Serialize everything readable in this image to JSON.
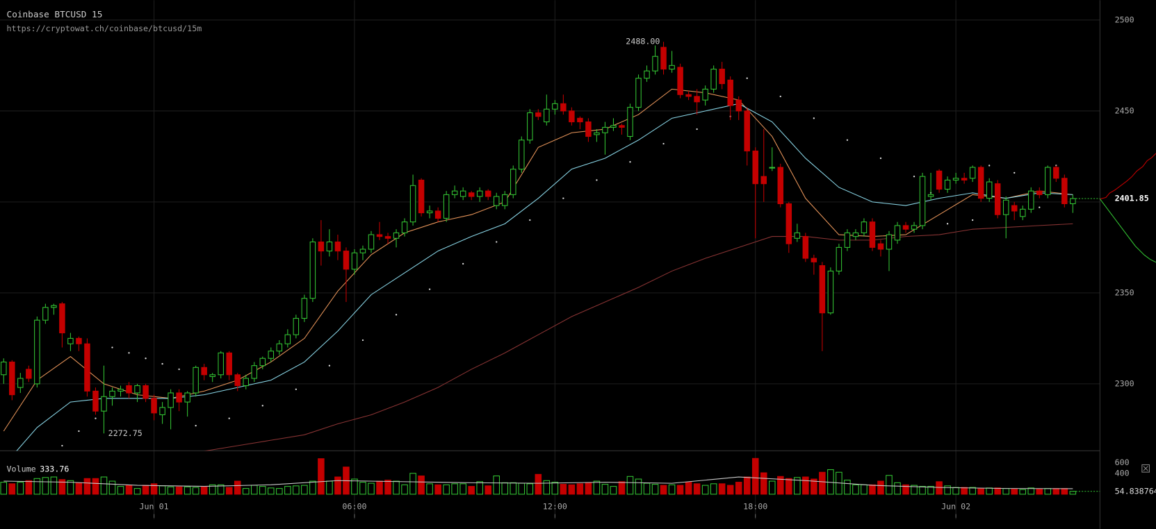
{
  "chart_data": {
    "type": "candlestick",
    "title": "Coinbase BTCUSD 15",
    "subtitle": "https://cryptowat.ch/coinbase/btcusd/15m",
    "up_color": "#33c433",
    "down_color": "#c40000",
    "grid": true,
    "xlim": [
      -0.44,
      131.25
    ],
    "xticks": [
      {
        "value": 18,
        "label": "Jun 01"
      },
      {
        "value": 42,
        "label": "06:00"
      },
      {
        "value": 66,
        "label": "12:00"
      },
      {
        "value": 90,
        "label": "18:00"
      },
      {
        "value": 114,
        "label": "Jun 02"
      }
    ],
    "ylim": [
      2263.2,
      2510.9
    ],
    "yticks": [
      2300,
      2350,
      2400,
      2450,
      2500
    ],
    "ohlc": [
      [
        2305,
        2314,
        2300,
        2312
      ],
      [
        2312,
        2313,
        2291,
        2294
      ],
      [
        2298,
        2306,
        2295,
        2303
      ],
      [
        2308,
        2310,
        2301,
        2303
      ],
      [
        2300,
        2337,
        2298,
        2335
      ],
      [
        2335,
        2344,
        2333,
        2342
      ],
      [
        2342,
        2344,
        2338,
        2343
      ],
      [
        2344,
        2345,
        2320,
        2328
      ],
      [
        2322,
        2328,
        2318,
        2325
      ],
      [
        2325,
        2326,
        2318,
        2322
      ],
      [
        2322,
        2325,
        2293,
        2296
      ],
      [
        2296,
        2298,
        2283,
        2285
      ],
      [
        2285,
        2310,
        2272.75,
        2293
      ],
      [
        2293,
        2298,
        2288,
        2296
      ],
      [
        2296,
        2299,
        2293,
        2297
      ],
      [
        2299,
        2301,
        2292,
        2295
      ],
      [
        2295,
        2300,
        2290,
        2299
      ],
      [
        2299,
        2300,
        2290,
        2292
      ],
      [
        2292,
        2294,
        2280,
        2284
      ],
      [
        2283,
        2290,
        2278,
        2287
      ],
      [
        2287,
        2297,
        2275,
        2295
      ],
      [
        2295,
        2297,
        2285,
        2290
      ],
      [
        2290,
        2296,
        2282,
        2295
      ],
      [
        2295,
        2310,
        2293,
        2309
      ],
      [
        2309,
        2311,
        2302,
        2305
      ],
      [
        2304,
        2306,
        2301,
        2305
      ],
      [
        2305,
        2318,
        2303,
        2317
      ],
      [
        2317,
        2318,
        2302,
        2305
      ],
      [
        2305,
        2306,
        2296,
        2299
      ],
      [
        2299,
        2305,
        2297,
        2303
      ],
      [
        2303,
        2312,
        2301,
        2310
      ],
      [
        2310,
        2315,
        2308,
        2314
      ],
      [
        2314,
        2320,
        2312,
        2318
      ],
      [
        2318,
        2324,
        2316,
        2322
      ],
      [
        2322,
        2330,
        2320,
        2327
      ],
      [
        2327,
        2338,
        2325,
        2336
      ],
      [
        2336,
        2349,
        2334,
        2347
      ],
      [
        2347,
        2380,
        2345,
        2378
      ],
      [
        2378,
        2390,
        2365,
        2373
      ],
      [
        2373,
        2385,
        2370,
        2378
      ],
      [
        2378,
        2382,
        2368,
        2373
      ],
      [
        2373,
        2375,
        2345,
        2363
      ],
      [
        2363,
        2374,
        2360,
        2372
      ],
      [
        2372,
        2376,
        2368,
        2374
      ],
      [
        2374,
        2384,
        2372,
        2382
      ],
      [
        2382,
        2389,
        2379,
        2381
      ],
      [
        2381,
        2383,
        2377,
        2380
      ],
      [
        2380,
        2385,
        2375,
        2383
      ],
      [
        2383,
        2391,
        2381,
        2389
      ],
      [
        2389,
        2415,
        2387,
        2409
      ],
      [
        2412,
        2413,
        2392,
        2394
      ],
      [
        2394,
        2398,
        2391,
        2395
      ],
      [
        2395,
        2397,
        2389,
        2391
      ],
      [
        2391,
        2406,
        2389,
        2404
      ],
      [
        2404,
        2409,
        2402,
        2406
      ],
      [
        2403,
        2408,
        2401,
        2406
      ],
      [
        2405,
        2406,
        2401,
        2403
      ],
      [
        2403,
        2408,
        2400,
        2406
      ],
      [
        2406,
        2407,
        2401,
        2403
      ],
      [
        2398,
        2405,
        2396,
        2403
      ],
      [
        2398,
        2406,
        2396,
        2404
      ],
      [
        2404,
        2420,
        2402,
        2418
      ],
      [
        2418,
        2436,
        2416,
        2434
      ],
      [
        2434,
        2451,
        2432,
        2449
      ],
      [
        2449,
        2451,
        2445,
        2447
      ],
      [
        2444,
        2459,
        2442,
        2451
      ],
      [
        2451,
        2456,
        2448,
        2454
      ],
      [
        2454,
        2459,
        2448,
        2450
      ],
      [
        2450,
        2452,
        2442,
        2444
      ],
      [
        2446,
        2447,
        2440,
        2444
      ],
      [
        2444,
        2446,
        2433,
        2436
      ],
      [
        2437,
        2440,
        2433,
        2438
      ],
      [
        2438,
        2444,
        2426,
        2441
      ],
      [
        2441,
        2446,
        2439,
        2442
      ],
      [
        2442,
        2443,
        2437,
        2441
      ],
      [
        2436,
        2454,
        2434,
        2452
      ],
      [
        2452,
        2470,
        2450,
        2468
      ],
      [
        2468,
        2475,
        2466,
        2472
      ],
      [
        2472,
        2486,
        2470,
        2480
      ],
      [
        2485,
        2488,
        2470,
        2473
      ],
      [
        2473,
        2483,
        2471,
        2475
      ],
      [
        2474,
        2476,
        2457,
        2459
      ],
      [
        2459,
        2461,
        2456,
        2458
      ],
      [
        2458,
        2462,
        2448,
        2455
      ],
      [
        2456,
        2464,
        2453,
        2462
      ],
      [
        2462,
        2475,
        2460,
        2473
      ],
      [
        2473,
        2477,
        2462,
        2465
      ],
      [
        2467,
        2469,
        2445,
        2453
      ],
      [
        2456,
        2458,
        2445,
        2450
      ],
      [
        2450,
        2452,
        2420,
        2428
      ],
      [
        2428,
        2430,
        2380,
        2410
      ],
      [
        2414,
        2440,
        2400,
        2410
      ],
      [
        2419,
        2430,
        2417,
        2419
      ],
      [
        2419,
        2421,
        2397,
        2399
      ],
      [
        2399,
        2400,
        2372,
        2377
      ],
      [
        2380,
        2388,
        2378,
        2383
      ],
      [
        2381,
        2383,
        2367,
        2369
      ],
      [
        2369,
        2371,
        2360,
        2367
      ],
      [
        2365,
        2367,
        2318,
        2339
      ],
      [
        2339,
        2364,
        2338,
        2362
      ],
      [
        2362,
        2377,
        2360,
        2375
      ],
      [
        2375,
        2385,
        2373,
        2383
      ],
      [
        2381,
        2385,
        2379,
        2383
      ],
      [
        2383,
        2391,
        2381,
        2389
      ],
      [
        2389,
        2391,
        2373,
        2375
      ],
      [
        2377,
        2379,
        2370,
        2374
      ],
      [
        2374,
        2384,
        2362,
        2382
      ],
      [
        2379,
        2389,
        2377,
        2387
      ],
      [
        2387,
        2389,
        2383,
        2385
      ],
      [
        2385,
        2389,
        2383,
        2387
      ],
      [
        2387,
        2416,
        2385,
        2414
      ],
      [
        2403,
        2416,
        2401,
        2404
      ],
      [
        2417,
        2418,
        2405,
        2407
      ],
      [
        2407,
        2414,
        2405,
        2412
      ],
      [
        2412,
        2416,
        2410,
        2413
      ],
      [
        2413,
        2416,
        2410,
        2412
      ],
      [
        2413,
        2420,
        2411,
        2419
      ],
      [
        2419,
        2420,
        2400,
        2402
      ],
      [
        2402,
        2413,
        2400,
        2411
      ],
      [
        2410,
        2412,
        2391,
        2393
      ],
      [
        2393,
        2403,
        2380,
        2401
      ],
      [
        2398,
        2400,
        2390,
        2395
      ],
      [
        2392,
        2398,
        2390,
        2396
      ],
      [
        2396,
        2408,
        2394,
        2406
      ],
      [
        2406,
        2408,
        2402,
        2404
      ],
      [
        2404,
        2420,
        2402,
        2419
      ],
      [
        2419,
        2420,
        2411,
        2413
      ],
      [
        2413,
        2415,
        2397,
        2399
      ],
      [
        2399,
        2404,
        2394,
        2401.85
      ]
    ],
    "moving_averages": [
      {
        "color": "#e8955a",
        "x": [
          0,
          4,
          8,
          12,
          16,
          20,
          24,
          28,
          32,
          36,
          40,
          44,
          48,
          52,
          56,
          60,
          64,
          68,
          72,
          76,
          80,
          84,
          88,
          92,
          96,
          100,
          104,
          108,
          112,
          116,
          120,
          124,
          128
        ],
        "values": [
          2274,
          2302,
          2315,
          2300,
          2294,
          2292,
          2296,
          2302,
          2312,
          2325,
          2351,
          2371,
          2383,
          2389,
          2393,
          2400,
          2430,
          2438,
          2440,
          2448,
          2462,
          2460,
          2456,
          2436,
          2402,
          2382,
          2381,
          2382,
          2393,
          2404,
          2402,
          2406,
          2404
        ]
      },
      {
        "color": "#8ad7e8",
        "x": [
          0,
          4,
          8,
          12,
          16,
          20,
          24,
          28,
          32,
          36,
          40,
          44,
          48,
          52,
          56,
          60,
          64,
          68,
          72,
          76,
          80,
          84,
          88,
          92,
          96,
          100,
          104,
          108,
          112,
          116,
          120,
          124,
          128
        ],
        "values": [
          2255,
          2276,
          2290,
          2292,
          2292,
          2292,
          2294,
          2298,
          2302,
          2312,
          2329,
          2349,
          2361,
          2373,
          2381,
          2388,
          2402,
          2418,
          2424,
          2434,
          2446,
          2450,
          2454,
          2444,
          2424,
          2408,
          2400,
          2398,
          2402,
          2405,
          2402,
          2405,
          2404
        ]
      },
      {
        "color": "#8a3434",
        "x": [
          24,
          28,
          32,
          36,
          40,
          44,
          48,
          52,
          56,
          60,
          64,
          68,
          72,
          76,
          80,
          84,
          88,
          92,
          96,
          100,
          104,
          108,
          112,
          116,
          120,
          124,
          128
        ],
        "values": [
          2263,
          2266,
          2269,
          2272,
          2278,
          2283,
          2290,
          2298,
          2308,
          2317,
          2327,
          2337,
          2345,
          2353,
          2362,
          2369,
          2375,
          2381,
          2381,
          2379,
          2379,
          2381,
          2382,
          2385,
          2386,
          2387,
          2388
        ]
      }
    ],
    "sar": {
      "color": "#dddddd",
      "x": [
        7,
        9,
        11,
        13,
        15,
        17,
        19,
        21,
        23,
        27,
        31,
        35,
        39,
        43,
        47,
        51,
        55,
        59,
        63,
        67,
        71,
        75,
        79,
        83,
        87,
        89,
        93,
        97,
        101,
        105,
        109,
        111,
        113,
        116,
        118,
        121,
        124,
        126
      ],
      "values": [
        2266,
        2274,
        2281,
        2320,
        2317,
        2314,
        2311,
        2308,
        2277,
        2281,
        2288,
        2297,
        2310,
        2324,
        2338,
        2352,
        2366,
        2378,
        2390,
        2402,
        2412,
        2422,
        2432,
        2440,
        2447,
        2468,
        2458,
        2446,
        2434,
        2424,
        2414,
        2405,
        2388,
        2390,
        2420,
        2416,
        2397,
        2420
      ]
    },
    "high_label": {
      "value": 2488,
      "label": "2488.00"
    },
    "low_label": {
      "value": 2272.75,
      "label": "2272.75"
    },
    "last_price": {
      "value": 2401.85,
      "label": "2401.85"
    },
    "volume": {
      "title": "Volume",
      "current": 333.76,
      "ylim": [
        0,
        690
      ],
      "yticks": [
        400,
        600
      ],
      "values": [
        230,
        200,
        230,
        260,
        300,
        320,
        330,
        280,
        260,
        220,
        300,
        300,
        330,
        250,
        150,
        170,
        110,
        170,
        200,
        160,
        140,
        140,
        140,
        130,
        140,
        180,
        180,
        130,
        250,
        110,
        170,
        150,
        120,
        110,
        150,
        160,
        170,
        250,
        680,
        250,
        330,
        520,
        290,
        230,
        210,
        250,
        270,
        250,
        180,
        400,
        350,
        200,
        180,
        180,
        200,
        200,
        150,
        240,
        160,
        350,
        220,
        220,
        210,
        200,
        380,
        260,
        230,
        190,
        180,
        200,
        220,
        250,
        190,
        150,
        240,
        340,
        290,
        210,
        190,
        170,
        180,
        170,
        230,
        200,
        170,
        200,
        200,
        170,
        230,
        330,
        685,
        410,
        250,
        340,
        300,
        320,
        330,
        290,
        420,
        470,
        420,
        270,
        180,
        180,
        180,
        250,
        360,
        220,
        180,
        170,
        150,
        150,
        240,
        160,
        130,
        130,
        130,
        110,
        120,
        120,
        110,
        100,
        90,
        120,
        100,
        110,
        110,
        110,
        54.838764
      ],
      "ma": {
        "color": "#cccccc",
        "x": [
          0,
          8,
          16,
          24,
          32,
          40,
          48,
          56,
          64,
          72,
          80,
          88,
          96,
          104,
          112,
          120,
          128
        ],
        "values": [
          250,
          230,
          170,
          150,
          180,
          260,
          240,
          220,
          210,
          230,
          210,
          330,
          260,
          170,
          130,
          110,
          105
        ]
      }
    }
  }
}
